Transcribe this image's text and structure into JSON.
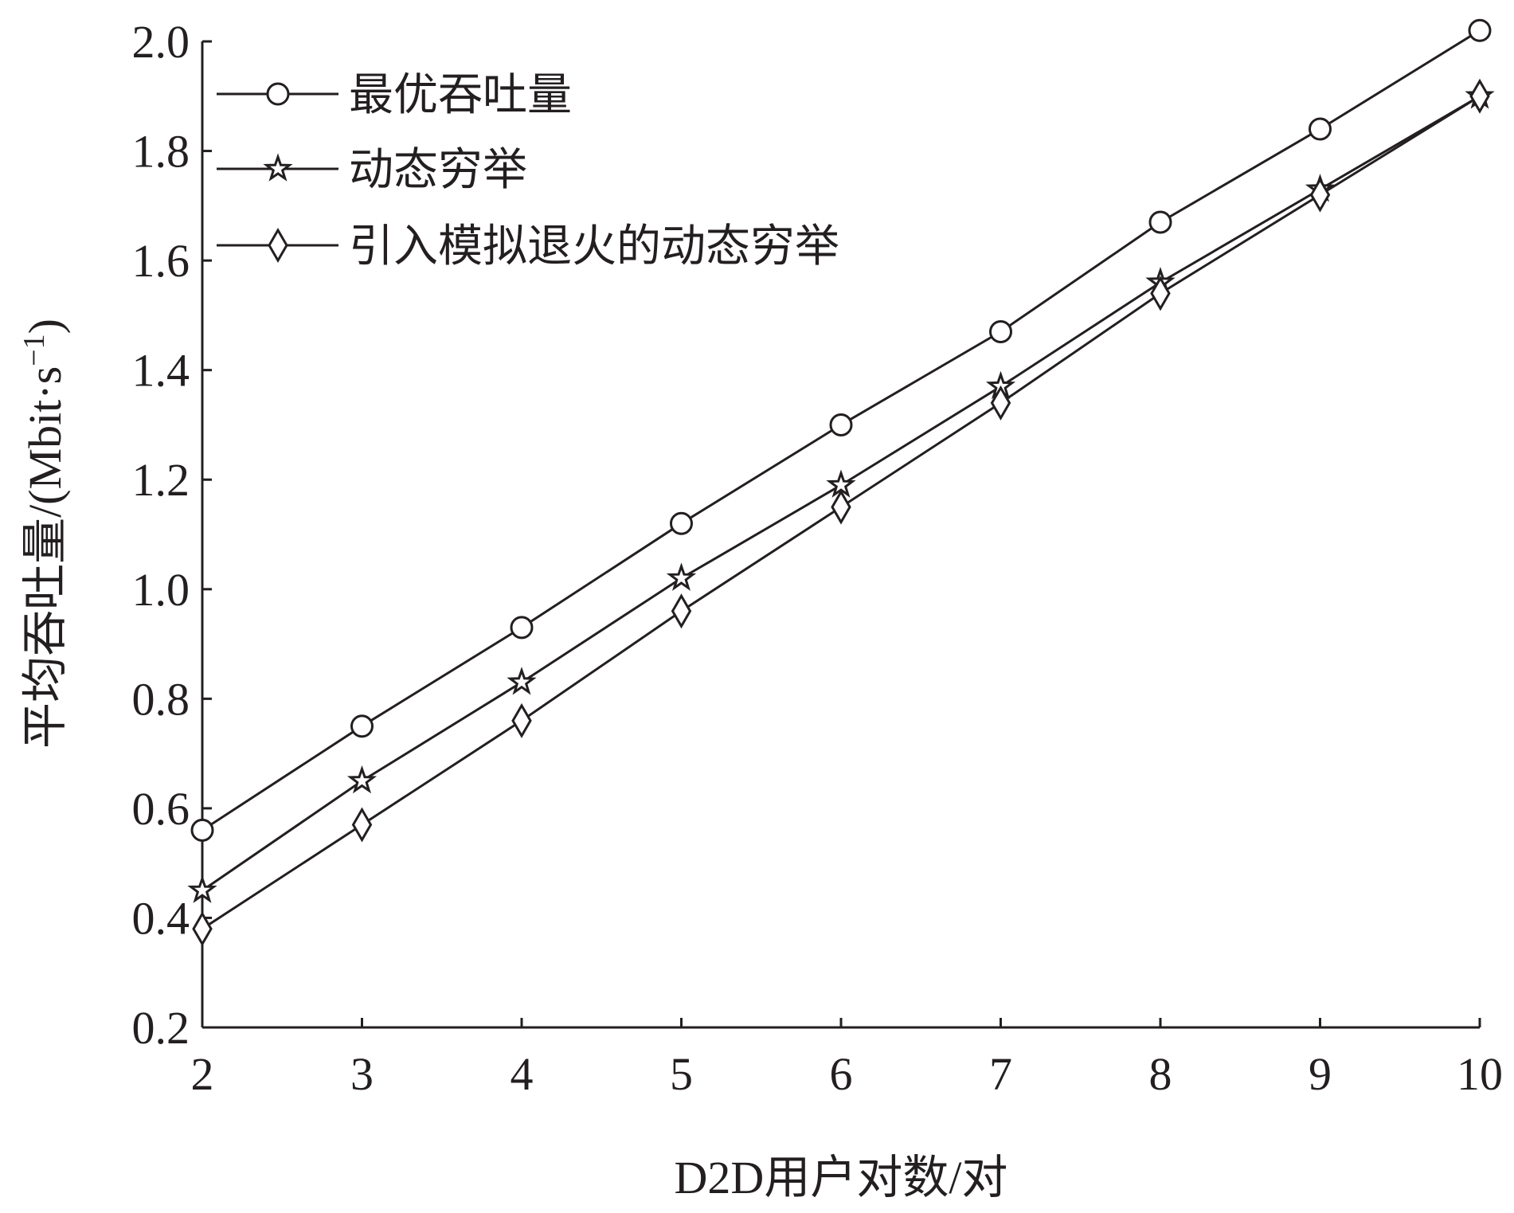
{
  "chart_data": {
    "type": "line",
    "title": "",
    "xlabel": "D2D用户对数/对",
    "ylabel_main": "平均吞吐量/(Mbit·s",
    "ylabel_sup": "−1",
    "ylabel_close": ")",
    "x": [
      2,
      3,
      4,
      5,
      6,
      7,
      8,
      9,
      10
    ],
    "xlim": [
      2,
      10
    ],
    "ylim": [
      0.2,
      2.0
    ],
    "xticks": [
      "2",
      "3",
      "4",
      "5",
      "6",
      "7",
      "8",
      "9",
      "10"
    ],
    "yticks": [
      "0.2",
      "0.4",
      "0.6",
      "0.8",
      "1.0",
      "1.2",
      "1.4",
      "1.6",
      "1.8",
      "2.0"
    ],
    "grid": false,
    "legend_position": "top-left",
    "series": [
      {
        "name": "最优吞吐量",
        "marker": "circle",
        "values": [
          0.56,
          0.75,
          0.93,
          1.12,
          1.3,
          1.47,
          1.67,
          1.84,
          2.02
        ]
      },
      {
        "name": "动态穷举",
        "marker": "star",
        "values": [
          0.45,
          0.65,
          0.83,
          1.02,
          1.19,
          1.37,
          1.56,
          1.73,
          1.9
        ]
      },
      {
        "name": "引入模拟退火的动态穷举",
        "marker": "diamond",
        "values": [
          0.38,
          0.57,
          0.76,
          0.96,
          1.15,
          1.34,
          1.54,
          1.72,
          1.9
        ]
      }
    ]
  }
}
